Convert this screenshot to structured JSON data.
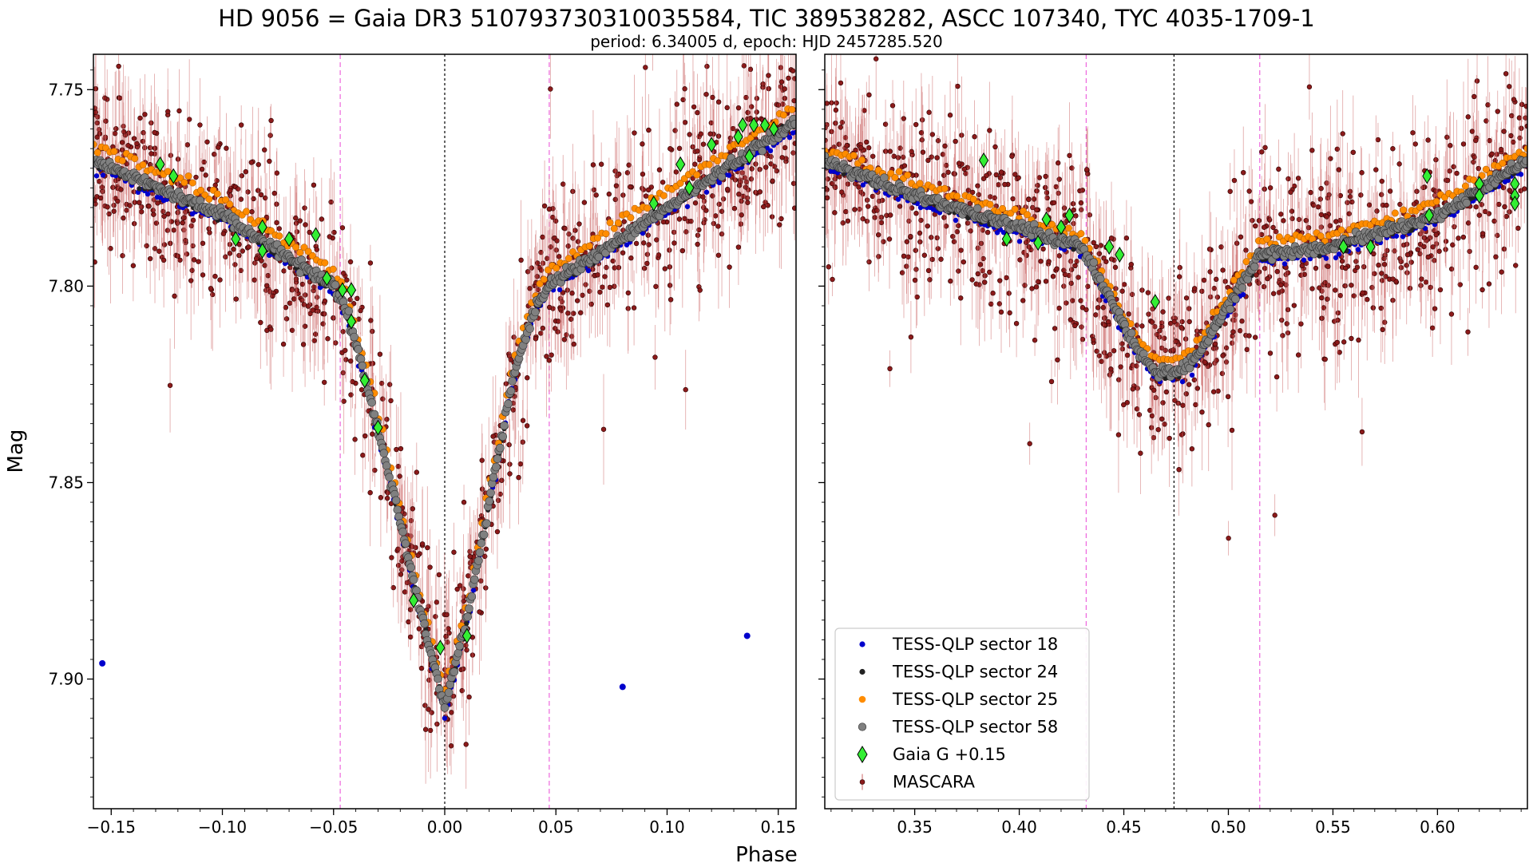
{
  "title": "HD 9056 = Gaia DR3 510793730310035584, TIC 389538282, ASCC 107340, TYC 4035-1709-1",
  "subtitle": "period: 6.34005 d, epoch: HJD 2457285.520",
  "xlabel": "Phase",
  "ylabel": "Mag",
  "colors": {
    "tess18": "#0000cc",
    "tess24": "#222222",
    "tess25": "#ff8c00",
    "tess58": "#808080",
    "gaia": "#33ee33",
    "mascara": "#8b1a1a",
    "mascara_err": "#cc6666",
    "guide_pink": "#ee66dd",
    "guide_black": "#000000"
  },
  "legend": {
    "placement": "lower-left of right panel",
    "entries": [
      {
        "label": "TESS-QLP sector 18",
        "key": "tess18"
      },
      {
        "label": "TESS-QLP sector 24",
        "key": "tess24"
      },
      {
        "label": "TESS-QLP sector 25",
        "key": "tess25"
      },
      {
        "label": "TESS-QLP sector 58",
        "key": "tess58"
      },
      {
        "label": "Gaia G +0.15",
        "key": "gaia"
      },
      {
        "label": "MASCARA",
        "key": "mascara"
      }
    ]
  },
  "chart_data": [
    {
      "type": "scatter",
      "panel": "left",
      "xlim": [
        -0.158,
        0.158
      ],
      "ylim": [
        7.933,
        7.741
      ],
      "y_inverted": true,
      "xticks": [
        -0.15,
        -0.1,
        -0.05,
        0.0,
        0.05,
        0.1,
        0.15
      ],
      "xtick_labels": [
        "−0.15",
        "−0.10",
        "−0.05",
        "0.00",
        "0.05",
        "0.10",
        "0.15"
      ],
      "yticks": [
        7.75,
        7.8,
        7.85,
        7.9
      ],
      "ytick_labels": [
        "7.75",
        "7.80",
        "7.85",
        "7.90"
      ],
      "vlines": [
        {
          "x": -0.047,
          "style": "pink-dashed"
        },
        {
          "x": 0.0,
          "style": "black-dashed"
        },
        {
          "x": 0.047,
          "style": "pink-dashed"
        }
      ],
      "model": {
        "description": "primary eclipse template",
        "points": [
          [
            -0.158,
            7.768
          ],
          [
            -0.1,
            7.782
          ],
          [
            -0.05,
            7.8
          ],
          [
            -0.045,
            7.805
          ],
          [
            -0.035,
            7.825
          ],
          [
            -0.02,
            7.86
          ],
          [
            -0.01,
            7.885
          ],
          [
            0.0,
            7.907
          ],
          [
            0.01,
            7.885
          ],
          [
            0.02,
            7.855
          ],
          [
            0.03,
            7.825
          ],
          [
            0.04,
            7.806
          ],
          [
            0.047,
            7.8
          ],
          [
            0.1,
            7.78
          ],
          [
            0.158,
            7.758
          ]
        ],
        "tess25_offset": -0.004
      },
      "gaia": [
        [
          -0.128,
          7.769
        ],
        [
          -0.122,
          7.772
        ],
        [
          -0.094,
          7.788
        ],
        [
          -0.082,
          7.785
        ],
        [
          -0.082,
          7.791
        ],
        [
          -0.07,
          7.788
        ],
        [
          -0.058,
          7.787
        ],
        [
          -0.053,
          7.798
        ],
        [
          -0.046,
          7.801
        ],
        [
          -0.042,
          7.801
        ],
        [
          -0.042,
          7.809
        ],
        [
          -0.036,
          7.824
        ],
        [
          -0.03,
          7.836
        ],
        [
          -0.014,
          7.88
        ],
        [
          -0.002,
          7.892
        ],
        [
          0.01,
          7.889
        ],
        [
          0.094,
          7.779
        ],
        [
          0.106,
          7.769
        ],
        [
          0.11,
          7.775
        ],
        [
          0.12,
          7.764
        ],
        [
          0.132,
          7.762
        ],
        [
          0.134,
          7.759
        ],
        [
          0.139,
          7.759
        ],
        [
          0.144,
          7.759
        ],
        [
          0.148,
          7.76
        ],
        [
          0.137,
          7.767
        ]
      ],
      "tess18_outliers": [
        [
          -0.154,
          7.896
        ],
        [
          0.08,
          7.902
        ],
        [
          0.136,
          7.889
        ]
      ]
    },
    {
      "type": "scatter",
      "panel": "right",
      "xlim": [
        0.307,
        0.643
      ],
      "ylim": [
        7.933,
        7.741
      ],
      "y_inverted": true,
      "xticks": [
        0.35,
        0.4,
        0.45,
        0.5,
        0.55,
        0.6
      ],
      "xtick_labels": [
        "0.35",
        "0.40",
        "0.45",
        "0.50",
        "0.55",
        "0.60"
      ],
      "vlines": [
        {
          "x": 0.432,
          "style": "pink-dashed"
        },
        {
          "x": 0.474,
          "style": "black-dashed"
        },
        {
          "x": 0.515,
          "style": "pink-dashed"
        }
      ],
      "model": {
        "description": "secondary eclipse template",
        "points": [
          [
            0.307,
            7.768
          ],
          [
            0.35,
            7.777
          ],
          [
            0.4,
            7.785
          ],
          [
            0.43,
            7.79
          ],
          [
            0.44,
            7.8
          ],
          [
            0.455,
            7.815
          ],
          [
            0.465,
            7.822
          ],
          [
            0.475,
            7.822
          ],
          [
            0.485,
            7.818
          ],
          [
            0.5,
            7.805
          ],
          [
            0.515,
            7.792
          ],
          [
            0.55,
            7.79
          ],
          [
            0.6,
            7.782
          ],
          [
            0.643,
            7.768
          ]
        ],
        "tess25_offset": -0.003
      },
      "gaia": [
        [
          0.383,
          7.768
        ],
        [
          0.394,
          7.788
        ],
        [
          0.409,
          7.789
        ],
        [
          0.413,
          7.783
        ],
        [
          0.42,
          7.785
        ],
        [
          0.424,
          7.782
        ],
        [
          0.443,
          7.79
        ],
        [
          0.448,
          7.792
        ],
        [
          0.465,
          7.804
        ],
        [
          0.555,
          7.79
        ],
        [
          0.568,
          7.79
        ],
        [
          0.595,
          7.772
        ],
        [
          0.596,
          7.782
        ],
        [
          0.62,
          7.774
        ],
        [
          0.62,
          7.777
        ],
        [
          0.637,
          7.774
        ],
        [
          0.637,
          7.777
        ],
        [
          0.637,
          7.779
        ]
      ]
    }
  ]
}
